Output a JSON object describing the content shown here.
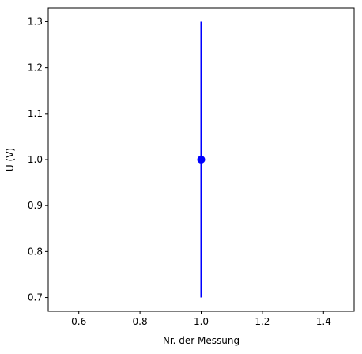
{
  "chart_data": {
    "type": "scatter",
    "title": "",
    "xlabel": "Nr. der Messung",
    "ylabel": "U (V)",
    "xlim": [
      0.5,
      1.5
    ],
    "ylim": [
      0.67,
      1.33
    ],
    "x_ticks": [
      "0.6",
      "0.8",
      "1.0",
      "1.2",
      "1.4"
    ],
    "y_ticks": [
      "0.7",
      "0.8",
      "0.9",
      "1.0",
      "1.1",
      "1.2",
      "1.3"
    ],
    "grid": false,
    "legend": false,
    "series": [
      {
        "color": "#0000ff",
        "marker": "circle",
        "points": [
          {
            "x": 1.0,
            "y": 1.0,
            "yerr": 0.3
          }
        ]
      }
    ]
  }
}
